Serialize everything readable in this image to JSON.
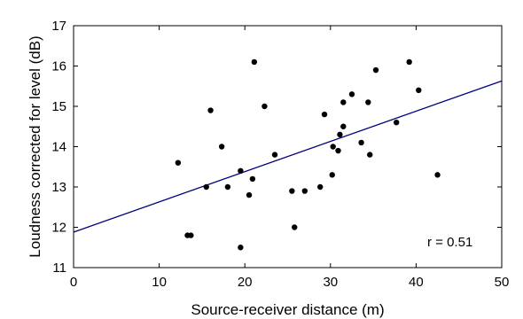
{
  "chart_data": {
    "type": "scatter",
    "title": "",
    "xlabel": "Source-receiver distance (m)",
    "ylabel": "Loudness corrected for level (dB)",
    "xlim": [
      0,
      50
    ],
    "ylim": [
      11,
      17
    ],
    "xticks": [
      0,
      10,
      20,
      30,
      40,
      50
    ],
    "yticks": [
      11,
      12,
      13,
      14,
      15,
      16,
      17
    ],
    "grid": false,
    "annotation": "r = 0.51",
    "marker_color": "#000000",
    "line_color": "#00007f",
    "points": [
      {
        "x": 12.2,
        "y": 13.6
      },
      {
        "x": 13.3,
        "y": 11.8
      },
      {
        "x": 13.7,
        "y": 11.8
      },
      {
        "x": 15.5,
        "y": 13.0
      },
      {
        "x": 16.0,
        "y": 14.9
      },
      {
        "x": 17.3,
        "y": 14.0
      },
      {
        "x": 18.0,
        "y": 13.0
      },
      {
        "x": 19.5,
        "y": 13.4
      },
      {
        "x": 19.5,
        "y": 11.5
      },
      {
        "x": 20.5,
        "y": 12.8
      },
      {
        "x": 20.9,
        "y": 13.2
      },
      {
        "x": 21.1,
        "y": 16.1
      },
      {
        "x": 22.3,
        "y": 15.0
      },
      {
        "x": 23.5,
        "y": 13.8
      },
      {
        "x": 25.5,
        "y": 12.9
      },
      {
        "x": 25.8,
        "y": 12.0
      },
      {
        "x": 27.0,
        "y": 12.9
      },
      {
        "x": 28.8,
        "y": 13.0
      },
      {
        "x": 29.3,
        "y": 14.8
      },
      {
        "x": 30.2,
        "y": 13.3
      },
      {
        "x": 30.3,
        "y": 14.0
      },
      {
        "x": 30.9,
        "y": 13.9
      },
      {
        "x": 31.1,
        "y": 14.3
      },
      {
        "x": 31.5,
        "y": 14.5
      },
      {
        "x": 31.5,
        "y": 15.1
      },
      {
        "x": 32.5,
        "y": 15.3
      },
      {
        "x": 33.6,
        "y": 14.1
      },
      {
        "x": 34.4,
        "y": 15.1
      },
      {
        "x": 34.6,
        "y": 13.8
      },
      {
        "x": 35.3,
        "y": 15.9
      },
      {
        "x": 37.7,
        "y": 14.6
      },
      {
        "x": 39.2,
        "y": 16.1
      },
      {
        "x": 40.3,
        "y": 15.4
      },
      {
        "x": 42.5,
        "y": 13.3
      }
    ],
    "fit_line": {
      "x": [
        0,
        50
      ],
      "y": [
        11.88,
        15.63
      ]
    }
  }
}
